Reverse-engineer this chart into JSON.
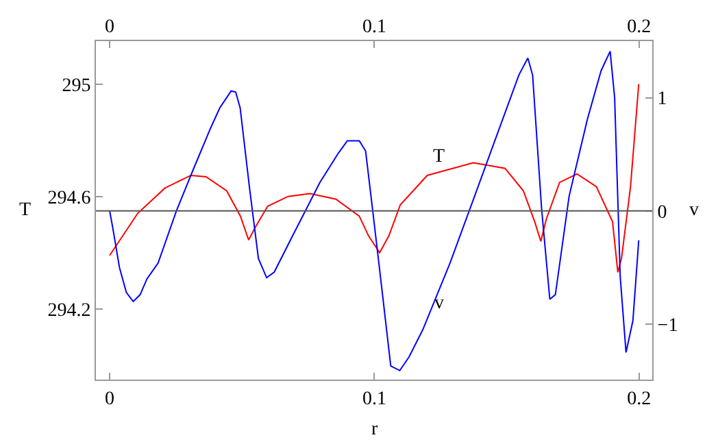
{
  "chart_data": {
    "type": "line",
    "xlabel": "r",
    "ylabel": "T",
    "y2label": "v",
    "xlim": [
      -0.0052,
      0.205
    ],
    "xticks": [
      0,
      0.1,
      0.2
    ],
    "x2lim": [
      -0.0052,
      0.205
    ],
    "x2ticks": [
      0,
      0.1,
      0.2
    ],
    "ylim": [
      293.948,
      295.153
    ],
    "yticks": [
      294.2,
      294.6,
      295
    ],
    "y2lim": [
      -1.49,
      1.5
    ],
    "y2ticks": [
      {
        "value": -1,
        "label": "−1"
      },
      0,
      1
    ],
    "legend": false,
    "marker": "none",
    "line_style": "solid",
    "series": [
      {
        "color": "#ff0000",
        "x": [
          0,
          0.0106,
          0.0209,
          0.0307,
          0.0364,
          0.0442,
          0.0494,
          0.0525,
          0.055,
          0.0597,
          0.0674,
          0.0757,
          0.0855,
          0.0943,
          0.0978,
          0.102,
          0.1055,
          0.1098,
          0.12,
          0.1374,
          0.1494,
          0.1563,
          0.1606,
          0.1629,
          0.165,
          0.17,
          0.1766,
          0.1839,
          0.19,
          0.192,
          0.1934,
          0.1968,
          0.1999
        ],
        "values": [
          294.39,
          294.54,
          294.63,
          294.675,
          294.67,
          294.62,
          294.53,
          294.445,
          294.49,
          294.565,
          294.6,
          294.61,
          294.59,
          294.53,
          294.46,
          294.4,
          294.46,
          294.57,
          294.675,
          294.72,
          294.7,
          294.62,
          294.51,
          294.44,
          294.52,
          294.65,
          294.68,
          294.635,
          294.51,
          294.33,
          294.38,
          294.635,
          295.0
        ]
      },
      {
        "color": "#0000ff",
        "axis": "y2",
        "x": [
          0,
          0.0011,
          0.0037,
          0.0063,
          0.0089,
          0.0115,
          0.0141,
          0.0183,
          0.0252,
          0.0313,
          0.0381,
          0.0416,
          0.0459,
          0.0476,
          0.0493,
          0.0528,
          0.0562,
          0.0593,
          0.0622,
          0.0691,
          0.0794,
          0.0864,
          0.0898,
          0.0943,
          0.0967,
          0.0993,
          0.1027,
          0.1062,
          0.1096,
          0.1131,
          0.1183,
          0.1286,
          0.1374,
          0.146,
          0.1546,
          0.158,
          0.1598,
          0.1632,
          0.1663,
          0.1684,
          0.1736,
          0.1805,
          0.1857,
          0.1891,
          0.1908,
          0.1929,
          0.1951,
          0.1977,
          0.1999
        ],
        "values": [
          0,
          -0.14,
          -0.5,
          -0.72,
          -0.8,
          -0.74,
          -0.6,
          -0.46,
          0,
          0.35,
          0.73,
          0.91,
          1.06,
          1.05,
          0.91,
          0.21,
          -0.42,
          -0.59,
          -0.54,
          -0.22,
          0.25,
          0.51,
          0.62,
          0.62,
          0.53,
          0.02,
          -0.66,
          -1.37,
          -1.41,
          -1.29,
          -1.05,
          -0.46,
          0.1,
          0.65,
          1.2,
          1.35,
          1.2,
          0.02,
          -0.78,
          -0.74,
          0.13,
          0.81,
          1.24,
          1.41,
          1.0,
          -0.58,
          -1.25,
          -0.97,
          -0.26
        ]
      }
    ],
    "ref_lines": [
      {
        "axis": "y2",
        "value": 0,
        "color": "#555555"
      }
    ],
    "annotations": [
      "T",
      "v"
    ]
  }
}
